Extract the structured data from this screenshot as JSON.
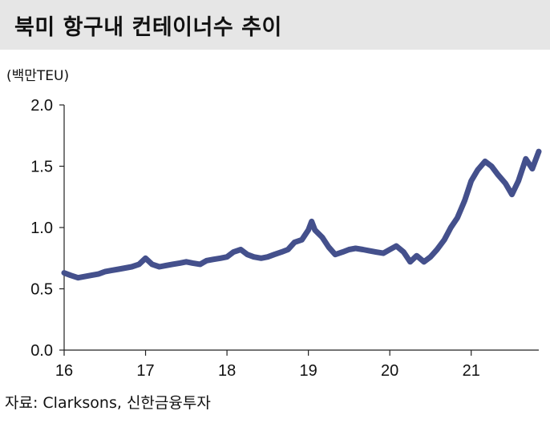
{
  "header": {
    "title": "북미 항구내 컨테이너수 추이"
  },
  "footer": {
    "source": "자료: Clarksons, 신한금융투자"
  },
  "chart_data": {
    "type": "line",
    "title": "북미 항구내 컨테이너수 추이",
    "ylabel": "(백만TEU)",
    "xlabel": "",
    "ylim": [
      0,
      2.0
    ],
    "xlim": [
      2016,
      2021.83
    ],
    "y_ticks": [
      "0.0",
      "0.5",
      "1.0",
      "1.5",
      "2.0"
    ],
    "y_tick_values": [
      0,
      0.5,
      1.0,
      1.5,
      2.0
    ],
    "x_ticks": [
      "16",
      "17",
      "18",
      "19",
      "20",
      "21"
    ],
    "x_tick_values": [
      2016,
      2017,
      2018,
      2019,
      2020,
      2021
    ],
    "grid": false,
    "line_color": "#44508c",
    "series": [
      {
        "x": [
          2016.0,
          2016.08,
          2016.17,
          2016.25,
          2016.33,
          2016.42,
          2016.5,
          2016.58,
          2016.67,
          2016.75,
          2016.83,
          2016.92,
          2017.0,
          2017.08,
          2017.17,
          2017.25,
          2017.33,
          2017.42,
          2017.5,
          2017.58,
          2017.67,
          2017.75,
          2017.83,
          2017.92,
          2018.0,
          2018.08,
          2018.17,
          2018.25,
          2018.33,
          2018.42,
          2018.5,
          2018.58,
          2018.67,
          2018.75,
          2018.83,
          2018.92,
          2019.0,
          2019.04,
          2019.08,
          2019.17,
          2019.25,
          2019.33,
          2019.42,
          2019.5,
          2019.58,
          2019.67,
          2019.75,
          2019.83,
          2019.92,
          2020.0,
          2020.08,
          2020.17,
          2020.25,
          2020.33,
          2020.42,
          2020.5,
          2020.58,
          2020.67,
          2020.75,
          2020.83,
          2020.92,
          2021.0,
          2021.08,
          2021.17,
          2021.25,
          2021.33,
          2021.42,
          2021.5,
          2021.58,
          2021.67,
          2021.75,
          2021.83
        ],
        "values": [
          0.63,
          0.61,
          0.59,
          0.6,
          0.61,
          0.62,
          0.64,
          0.65,
          0.66,
          0.67,
          0.68,
          0.7,
          0.75,
          0.7,
          0.68,
          0.69,
          0.7,
          0.71,
          0.72,
          0.71,
          0.7,
          0.73,
          0.74,
          0.75,
          0.76,
          0.8,
          0.82,
          0.78,
          0.76,
          0.75,
          0.76,
          0.78,
          0.8,
          0.82,
          0.88,
          0.9,
          0.98,
          1.05,
          0.98,
          0.92,
          0.84,
          0.78,
          0.8,
          0.82,
          0.83,
          0.82,
          0.81,
          0.8,
          0.79,
          0.82,
          0.85,
          0.8,
          0.72,
          0.77,
          0.72,
          0.76,
          0.82,
          0.9,
          1.0,
          1.08,
          1.22,
          1.38,
          1.47,
          1.54,
          1.5,
          1.43,
          1.36,
          1.27,
          1.38,
          1.56,
          1.48,
          1.62
        ]
      }
    ]
  }
}
